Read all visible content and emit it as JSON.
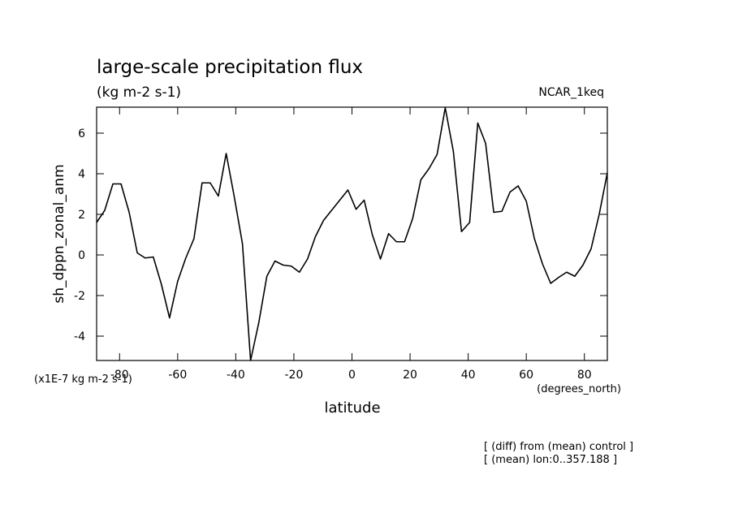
{
  "chart_data": {
    "type": "line",
    "title": "large-scale precipitation flux",
    "subtitle": "(kg m-2 s-1)",
    "run_label": "NCAR_1keq",
    "y_label": "sh_dppn_zonal_anm",
    "y_units": "(x1E-7 kg m-2 s-1)",
    "x_label": "latitude",
    "x_units": "(degrees_north)",
    "notes": [
      "[ (diff) from (mean) control ]",
      "[ (mean) lon:0..357.188 ]"
    ],
    "x": [
      -87.9,
      -85.1,
      -82.3,
      -79.5,
      -76.7,
      -73.9,
      -71.2,
      -68.4,
      -65.6,
      -62.8,
      -60.0,
      -57.2,
      -54.4,
      -51.6,
      -48.8,
      -46.0,
      -43.3,
      -40.5,
      -37.7,
      -34.9,
      -32.1,
      -29.3,
      -26.5,
      -23.7,
      -20.9,
      -18.1,
      -15.3,
      -12.6,
      -9.8,
      -7.0,
      -4.2,
      -1.4,
      1.4,
      4.2,
      7.0,
      9.8,
      12.6,
      15.3,
      18.1,
      20.9,
      23.7,
      26.5,
      29.3,
      32.1,
      34.9,
      37.7,
      40.5,
      43.3,
      46.0,
      48.8,
      51.6,
      54.4,
      57.2,
      60.0,
      62.8,
      65.6,
      68.4,
      71.2,
      73.9,
      76.7,
      79.5,
      82.3,
      85.1,
      87.9
    ],
    "series": [
      {
        "color": "#000000",
        "values": [
          1.6,
          2.2,
          3.5,
          3.5,
          2.1,
          0.1,
          -0.15,
          -0.1,
          -1.45,
          -3.1,
          -1.3,
          -0.15,
          0.8,
          3.55,
          3.55,
          2.9,
          5.0,
          2.85,
          0.55,
          -5.2,
          -3.35,
          -1.05,
          -0.3,
          -0.5,
          -0.55,
          -0.85,
          -0.2,
          0.9,
          1.7,
          2.2,
          2.7,
          3.2,
          2.25,
          2.7,
          1.0,
          -0.2,
          1.05,
          0.65,
          0.65,
          1.8,
          3.7,
          4.25,
          4.95,
          7.25,
          5.1,
          1.15,
          1.6,
          6.5,
          5.5,
          2.1,
          2.15,
          3.1,
          3.4,
          2.65,
          0.8,
          -0.45,
          -1.4,
          -1.1,
          -0.85,
          -1.05,
          -0.5,
          0.3,
          2.0,
          4.05
        ]
      }
    ],
    "xlim": [
      -87.9,
      87.9
    ],
    "ylim": [
      -5.2,
      7.28
    ],
    "xticks": [
      -80,
      -60,
      -40,
      -20,
      0,
      20,
      40,
      60,
      80
    ],
    "yticks": [
      -4,
      -2,
      0,
      2,
      4,
      6
    ],
    "grid": false
  }
}
